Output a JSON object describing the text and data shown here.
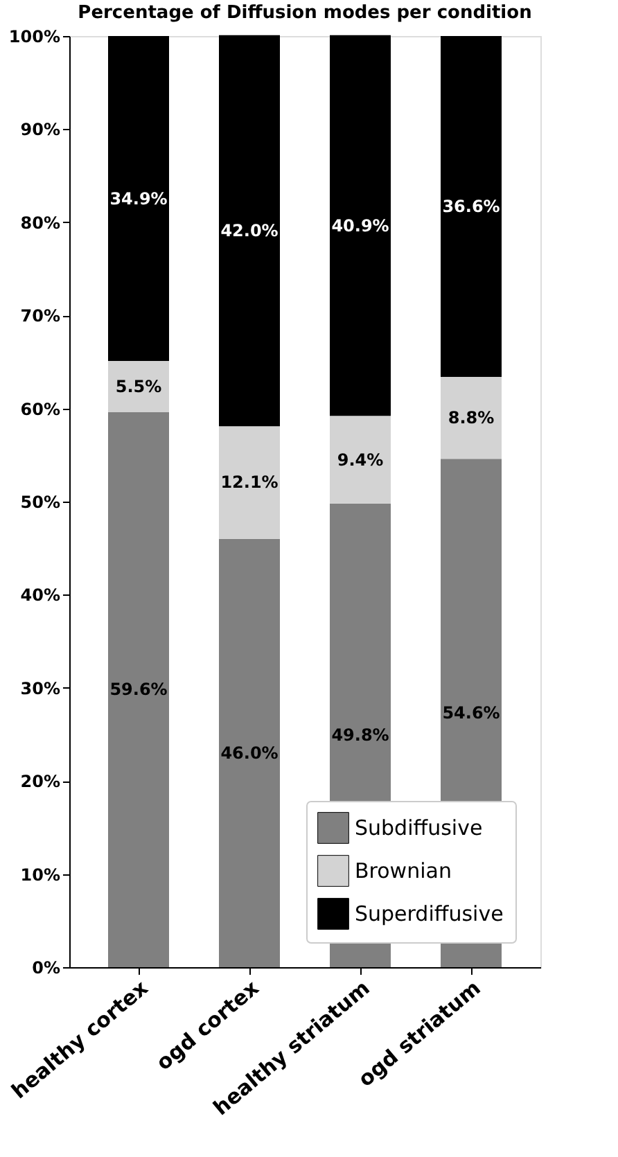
{
  "chart_data": {
    "type": "bar",
    "stacked": true,
    "title": "Percentage of Diffusion modes per condition",
    "categories": [
      "healthy cortex",
      "ogd cortex",
      "healthy striatum",
      "ogd striatum"
    ],
    "series": [
      {
        "name": "Subdiffusive",
        "color": "#808080",
        "values": [
          59.6,
          46.0,
          49.8,
          54.6
        ],
        "value_labels": [
          "59.6%",
          "46.0%",
          "49.8%",
          "54.6%"
        ]
      },
      {
        "name": "Brownian",
        "color": "#d3d3d3",
        "values": [
          5.5,
          12.1,
          9.4,
          8.8
        ],
        "value_labels": [
          "5.5%",
          "12.1%",
          "9.4%",
          "8.8%"
        ]
      },
      {
        "name": "Superdiffusive",
        "color": "#000000",
        "values": [
          34.9,
          42.0,
          40.9,
          36.6
        ],
        "value_labels": [
          "34.9%",
          "42.0%",
          "40.9%",
          "36.6%"
        ]
      }
    ],
    "ylim": [
      0,
      100
    ],
    "yticks": [
      {
        "value": 0,
        "label": "0%"
      },
      {
        "value": 10,
        "label": "10%"
      },
      {
        "value": 20,
        "label": "20%"
      },
      {
        "value": 30,
        "label": "30%"
      },
      {
        "value": 40,
        "label": "40%"
      },
      {
        "value": 50,
        "label": "50%"
      },
      {
        "value": 60,
        "label": "60%"
      },
      {
        "value": 70,
        "label": "70%"
      },
      {
        "value": 80,
        "label": "80%"
      },
      {
        "value": 90,
        "label": "90%"
      },
      {
        "value": 100,
        "label": "100%"
      }
    ],
    "legend": "bottom right",
    "grid": false
  }
}
